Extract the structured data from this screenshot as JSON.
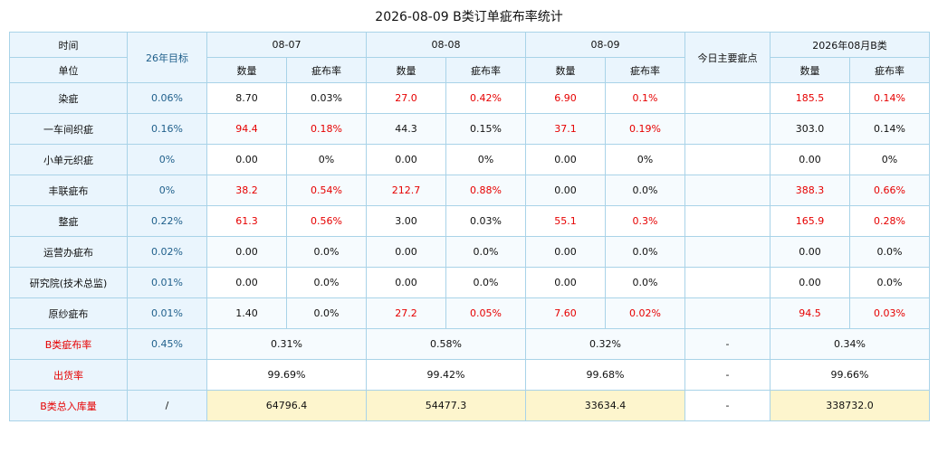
{
  "title": "2026-08-09 B类订单疵布率统计",
  "header": {
    "time_label": "时间",
    "unit_label": "单位",
    "target_label": "26年目标",
    "dates": [
      "08-07",
      "08-08",
      "08-09"
    ],
    "main_defect_label": "今日主要疵点",
    "month_label": "2026年08月B类",
    "qty_label": "数量",
    "rate_label": "疵布率"
  },
  "colors": {
    "highlight_red": "#e60000",
    "target_blue": "#1f5f8b",
    "header_bg": "#eaf5fd",
    "total_bg": "#fdf5cd"
  },
  "rows": [
    {
      "unit": "染疵",
      "target": "0.06%",
      "d1_qty": "8.70",
      "d1_rate": "0.03%",
      "d2_qty": "27.0",
      "d2_rate": "0.42%",
      "d3_qty": "6.90",
      "d3_rate": "0.1%",
      "main_defect": "",
      "m_qty": "185.5",
      "m_rate": "0.14%"
    },
    {
      "unit": "一车间织疵",
      "target": "0.16%",
      "d1_qty": "94.4",
      "d1_rate": "0.18%",
      "d2_qty": "44.3",
      "d2_rate": "0.15%",
      "d3_qty": "37.1",
      "d3_rate": "0.19%",
      "main_defect": "",
      "m_qty": "303.0",
      "m_rate": "0.14%"
    },
    {
      "unit": "小单元织疵",
      "target": "0%",
      "d1_qty": "0.00",
      "d1_rate": "0%",
      "d2_qty": "0.00",
      "d2_rate": "0%",
      "d3_qty": "0.00",
      "d3_rate": "0%",
      "main_defect": "",
      "m_qty": "0.00",
      "m_rate": "0%"
    },
    {
      "unit": "丰联疵布",
      "target": "0%",
      "d1_qty": "38.2",
      "d1_rate": "0.54%",
      "d2_qty": "212.7",
      "d2_rate": "0.88%",
      "d3_qty": "0.00",
      "d3_rate": "0.0%",
      "main_defect": "",
      "m_qty": "388.3",
      "m_rate": "0.66%"
    },
    {
      "unit": "整疵",
      "target": "0.22%",
      "d1_qty": "61.3",
      "d1_rate": "0.56%",
      "d2_qty": "3.00",
      "d2_rate": "0.03%",
      "d3_qty": "55.1",
      "d3_rate": "0.3%",
      "main_defect": "",
      "m_qty": "165.9",
      "m_rate": "0.28%"
    },
    {
      "unit": "运营办疵布",
      "target": "0.02%",
      "d1_qty": "0.00",
      "d1_rate": "0.0%",
      "d2_qty": "0.00",
      "d2_rate": "0.0%",
      "d3_qty": "0.00",
      "d3_rate": "0.0%",
      "main_defect": "",
      "m_qty": "0.00",
      "m_rate": "0.0%"
    },
    {
      "unit": "研究院(技术总监)",
      "target": "0.01%",
      "d1_qty": "0.00",
      "d1_rate": "0.0%",
      "d2_qty": "0.00",
      "d2_rate": "0.0%",
      "d3_qty": "0.00",
      "d3_rate": "0.0%",
      "main_defect": "",
      "m_qty": "0.00",
      "m_rate": "0.0%"
    },
    {
      "unit": "原纱疵布",
      "target": "0.01%",
      "d1_qty": "1.40",
      "d1_rate": "0.0%",
      "d2_qty": "27.2",
      "d2_rate": "0.05%",
      "d3_qty": "7.60",
      "d3_rate": "0.02%",
      "main_defect": "",
      "m_qty": "94.5",
      "m_rate": "0.03%"
    }
  ],
  "summary": {
    "defect_rate": {
      "label": "B类疵布率",
      "target": "0.45%",
      "d1": "0.31%",
      "d2": "0.58%",
      "d3": "0.32%",
      "main_defect": "-",
      "month": "0.34%"
    },
    "shipment_rate": {
      "label": "出货率",
      "target": "",
      "d1": "99.69%",
      "d2": "99.42%",
      "d3": "99.68%",
      "main_defect": "-",
      "month": "99.66%"
    },
    "total_inbound": {
      "label": "B类总入库量",
      "target": "/",
      "d1": "64796.4",
      "d2": "54477.3",
      "d3": "33634.4",
      "main_defect": "-",
      "month": "338732.0"
    }
  }
}
